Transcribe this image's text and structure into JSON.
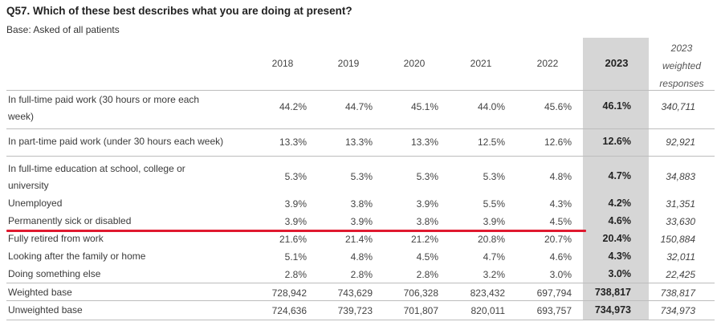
{
  "title": "Q57. Which of these best describes what you are doing at present?",
  "subtitle": "Base: Asked of all patients",
  "columns": [
    "2018",
    "2019",
    "2020",
    "2021",
    "2022",
    "2023"
  ],
  "weighted_header": [
    "2023",
    "weighted",
    "responses"
  ],
  "rows": [
    {
      "label_lines": [
        "In full-time paid work (30 hours or more each",
        "week)"
      ],
      "values": [
        "44.2%",
        "44.7%",
        "45.1%",
        "44.0%",
        "45.6%"
      ],
      "v2023": "46.1%",
      "weighted": "340,711"
    },
    {
      "label_lines": [
        "In part-time paid work (under 30 hours each week)"
      ],
      "values": [
        "13.3%",
        "13.3%",
        "13.3%",
        "12.5%",
        "12.6%"
      ],
      "v2023": "12.6%",
      "weighted": "92,921"
    },
    {
      "label_lines": [
        "In full-time education at school, college or",
        "university"
      ],
      "values": [
        "5.3%",
        "5.3%",
        "5.3%",
        "5.3%",
        "4.8%"
      ],
      "v2023": "4.7%",
      "weighted": "34,883"
    },
    {
      "label_lines": [
        "Unemployed"
      ],
      "values": [
        "3.9%",
        "3.8%",
        "3.9%",
        "5.5%",
        "4.3%"
      ],
      "v2023": "4.2%",
      "weighted": "31,351"
    },
    {
      "label_lines": [
        "Permanently sick or disabled"
      ],
      "values": [
        "3.9%",
        "3.9%",
        "3.8%",
        "3.9%",
        "4.5%"
      ],
      "v2023": "4.6%",
      "weighted": "33,630"
    },
    {
      "label_lines": [
        "Fully retired from work"
      ],
      "values": [
        "21.6%",
        "21.4%",
        "21.2%",
        "20.8%",
        "20.7%"
      ],
      "v2023": "20.4%",
      "weighted": "150,884"
    },
    {
      "label_lines": [
        "Looking after the family or home"
      ],
      "values": [
        "5.1%",
        "4.8%",
        "4.5%",
        "4.7%",
        "4.6%"
      ],
      "v2023": "4.3%",
      "weighted": "32,011"
    },
    {
      "label_lines": [
        "Doing something else"
      ],
      "values": [
        "2.8%",
        "2.8%",
        "2.8%",
        "3.2%",
        "3.0%"
      ],
      "v2023": "3.0%",
      "weighted": "22,425"
    },
    {
      "label_lines": [
        "Weighted base"
      ],
      "values": [
        "728,942",
        "743,629",
        "706,328",
        "823,432",
        "697,794"
      ],
      "v2023": "738,817",
      "weighted": "738,817"
    },
    {
      "label_lines": [
        "Unweighted base"
      ],
      "values": [
        "724,636",
        "739,723",
        "701,807",
        "820,011",
        "693,757"
      ],
      "v2023": "734,973",
      "weighted": "734,973"
    }
  ],
  "highlight_color": "#e0192f"
}
